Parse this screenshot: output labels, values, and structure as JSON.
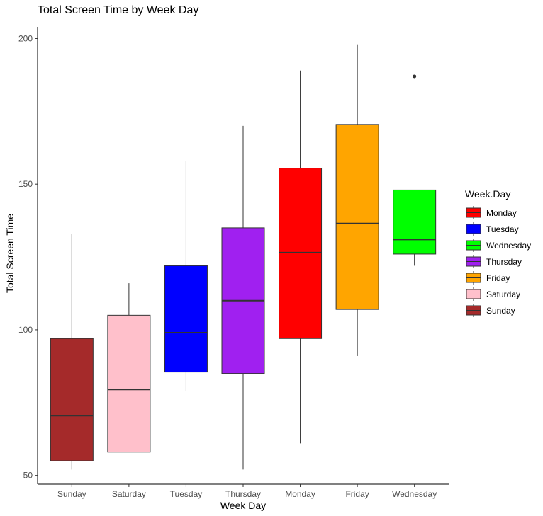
{
  "chart_data": {
    "type": "box",
    "title": "Total Screen Time by Week Day",
    "xlabel": "Week Day",
    "ylabel": "Total Screen Time",
    "ylim": [
      47,
      204
    ],
    "yticks": [
      50,
      100,
      150,
      200
    ],
    "grid": false,
    "legend_title": "Week.Day",
    "legend_position": "right",
    "categories": [
      "Sunday",
      "Saturday",
      "Tuesday",
      "Thursday",
      "Monday",
      "Friday",
      "Wednesday"
    ],
    "boxes": [
      {
        "category": "Sunday",
        "min": 52,
        "q1": 55,
        "median": 70.5,
        "q3": 97,
        "max": 133,
        "outliers": [],
        "color": "#A52A2A"
      },
      {
        "category": "Saturday",
        "min": 58,
        "q1": 58,
        "median": 79.5,
        "q3": 105,
        "max": 116,
        "outliers": [],
        "color": "#FFC0CB"
      },
      {
        "category": "Tuesday",
        "min": 79,
        "q1": 85.5,
        "median": 99,
        "q3": 122,
        "max": 158,
        "outliers": [],
        "color": "#0000FF"
      },
      {
        "category": "Thursday",
        "min": 52,
        "q1": 85,
        "median": 110,
        "q3": 135,
        "max": 170,
        "outliers": [],
        "color": "#A020F0"
      },
      {
        "category": "Monday",
        "min": 61,
        "q1": 97,
        "median": 126.5,
        "q3": 155.5,
        "max": 189,
        "outliers": [],
        "color": "#FF0000"
      },
      {
        "category": "Friday",
        "min": 91,
        "q1": 107,
        "median": 136.5,
        "q3": 170.5,
        "max": 198,
        "outliers": [],
        "color": "#FFA500"
      },
      {
        "category": "Wednesday",
        "min": 122,
        "q1": 126,
        "median": 131,
        "q3": 148,
        "max": 148,
        "outliers": [
          187
        ],
        "color": "#00FF00"
      }
    ],
    "legend": [
      {
        "label": "Monday",
        "color": "#FF0000"
      },
      {
        "label": "Tuesday",
        "color": "#0000FF"
      },
      {
        "label": "Wednesday",
        "color": "#00FF00"
      },
      {
        "label": "Thursday",
        "color": "#A020F0"
      },
      {
        "label": "Friday",
        "color": "#FFA500"
      },
      {
        "label": "Saturday",
        "color": "#FFC0CB"
      },
      {
        "label": "Sunday",
        "color": "#A52A2A"
      }
    ]
  }
}
